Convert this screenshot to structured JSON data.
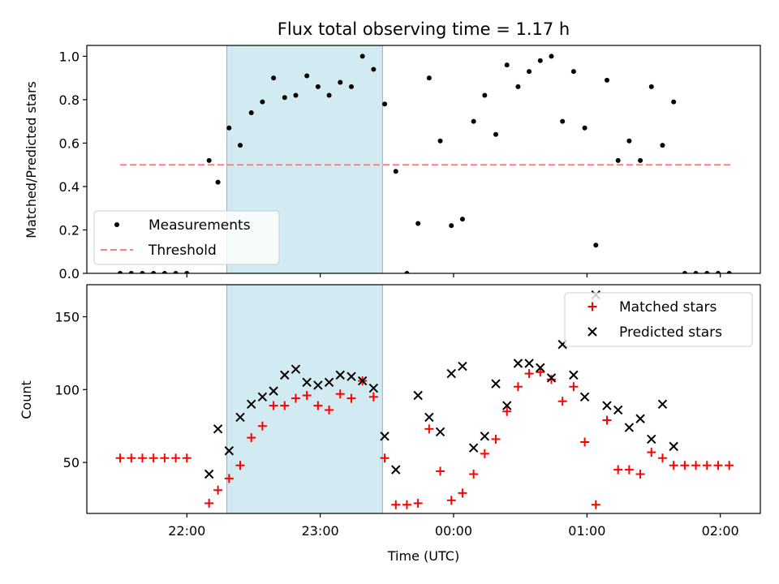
{
  "chart_data": [
    {
      "type": "scatter",
      "title": "Flux total observing time = 1.17 h",
      "xlabel": "",
      "ylabel": "Matched/Predicted stars",
      "ylim": [
        0,
        1.05
      ],
      "yticks": [
        0.0,
        0.2,
        0.4,
        0.6,
        0.8,
        1.0
      ],
      "ytick_labels": [
        "0.0",
        "0.2",
        "0.4",
        "0.6",
        "0.8",
        "1.0"
      ],
      "highlight_span": {
        "from": "22:18",
        "to": "23:28",
        "color": "#add8e6"
      },
      "threshold": {
        "value": 0.5,
        "from": "21:30",
        "to": "02:05",
        "color": "#ff7f7f"
      },
      "legend": {
        "position": "lower-left",
        "entries": [
          {
            "label": "Measurements",
            "marker": "dot",
            "color": "#000000"
          },
          {
            "label": "Threshold",
            "marker": "dashed-line",
            "color": "#ff7f7f"
          }
        ]
      },
      "series": [
        {
          "name": "Measurements",
          "color": "#000000",
          "points": [
            [
              "21:30",
              0.0
            ],
            [
              "21:35",
              0.0
            ],
            [
              "21:40",
              0.0
            ],
            [
              "21:45",
              0.0
            ],
            [
              "21:50",
              0.0
            ],
            [
              "21:55",
              0.0
            ],
            [
              "22:00",
              0.0
            ],
            [
              "22:10",
              0.52
            ],
            [
              "22:14",
              0.42
            ],
            [
              "22:19",
              0.67
            ],
            [
              "22:24",
              0.59
            ],
            [
              "22:29",
              0.74
            ],
            [
              "22:34",
              0.79
            ],
            [
              "22:39",
              0.9
            ],
            [
              "22:44",
              0.81
            ],
            [
              "22:49",
              0.82
            ],
            [
              "22:54",
              0.91
            ],
            [
              "22:59",
              0.86
            ],
            [
              "23:04",
              0.82
            ],
            [
              "23:09",
              0.88
            ],
            [
              "23:14",
              0.86
            ],
            [
              "23:19",
              1.0
            ],
            [
              "23:24",
              0.94
            ],
            [
              "23:29",
              0.78
            ],
            [
              "23:34",
              0.47
            ],
            [
              "23:39",
              0.0
            ],
            [
              "23:44",
              0.23
            ],
            [
              "23:49",
              0.9
            ],
            [
              "23:54",
              0.61
            ],
            [
              "23:59",
              0.22
            ],
            [
              "00:04",
              0.25
            ],
            [
              "00:09",
              0.7
            ],
            [
              "00:14",
              0.82
            ],
            [
              "00:19",
              0.64
            ],
            [
              "00:24",
              0.96
            ],
            [
              "00:29",
              0.86
            ],
            [
              "00:34",
              0.93
            ],
            [
              "00:39",
              0.98
            ],
            [
              "00:44",
              1.0
            ],
            [
              "00:49",
              0.7
            ],
            [
              "00:54",
              0.93
            ],
            [
              "00:59",
              0.67
            ],
            [
              "01:04",
              0.13
            ],
            [
              "01:09",
              0.89
            ],
            [
              "01:14",
              0.52
            ],
            [
              "01:19",
              0.61
            ],
            [
              "01:24",
              0.52
            ],
            [
              "01:29",
              0.86
            ],
            [
              "01:34",
              0.59
            ],
            [
              "01:39",
              0.79
            ],
            [
              "01:44",
              0.0
            ],
            [
              "01:49",
              0.0
            ],
            [
              "01:54",
              0.0
            ],
            [
              "01:59",
              0.0
            ],
            [
              "02:04",
              0.0
            ]
          ]
        }
      ]
    },
    {
      "type": "scatter",
      "title": "",
      "xlabel": "Time (UTC)",
      "ylabel": "Count",
      "xlim": [
        "21:15",
        "02:18"
      ],
      "xticks": [
        "22:00",
        "23:00",
        "00:00",
        "01:00",
        "02:00"
      ],
      "ylim": [
        15,
        172
      ],
      "yticks": [
        50,
        100,
        150
      ],
      "ytick_labels": [
        "50",
        "100",
        "150"
      ],
      "highlight_span": {
        "from": "22:18",
        "to": "23:28",
        "color": "#add8e6"
      },
      "legend": {
        "position": "top-right",
        "entries": [
          {
            "label": "Matched stars",
            "marker": "plus",
            "color": "#ff0000"
          },
          {
            "label": "Predicted stars",
            "marker": "x",
            "color": "#000000"
          }
        ]
      },
      "series": [
        {
          "name": "Matched stars",
          "color": "#ff0000",
          "points": [
            [
              "21:30",
              53
            ],
            [
              "21:35",
              53
            ],
            [
              "21:40",
              53
            ],
            [
              "21:45",
              53
            ],
            [
              "21:50",
              53
            ],
            [
              "21:55",
              53
            ],
            [
              "22:00",
              53
            ],
            [
              "22:10",
              22
            ],
            [
              "22:14",
              31
            ],
            [
              "22:19",
              39
            ],
            [
              "22:24",
              48
            ],
            [
              "22:29",
              67
            ],
            [
              "22:34",
              75
            ],
            [
              "22:39",
              89
            ],
            [
              "22:44",
              89
            ],
            [
              "22:49",
              94
            ],
            [
              "22:54",
              96
            ],
            [
              "22:59",
              89
            ],
            [
              "23:04",
              86
            ],
            [
              "23:09",
              97
            ],
            [
              "23:14",
              94
            ],
            [
              "23:19",
              106
            ],
            [
              "23:24",
              95
            ],
            [
              "23:29",
              53
            ],
            [
              "23:34",
              21
            ],
            [
              "23:39",
              21
            ],
            [
              "23:44",
              22
            ],
            [
              "23:49",
              73
            ],
            [
              "23:54",
              44
            ],
            [
              "23:59",
              24
            ],
            [
              "00:04",
              29
            ],
            [
              "00:09",
              42
            ],
            [
              "00:14",
              56
            ],
            [
              "00:19",
              66
            ],
            [
              "00:24",
              85
            ],
            [
              "00:29",
              102
            ],
            [
              "00:34",
              111
            ],
            [
              "00:39",
              112
            ],
            [
              "00:44",
              107
            ],
            [
              "00:49",
              92
            ],
            [
              "00:54",
              102
            ],
            [
              "00:59",
              64
            ],
            [
              "01:04",
              21
            ],
            [
              "01:09",
              79
            ],
            [
              "01:14",
              45
            ],
            [
              "01:19",
              45
            ],
            [
              "01:24",
              42
            ],
            [
              "01:29",
              57
            ],
            [
              "01:34",
              53
            ],
            [
              "01:39",
              48
            ],
            [
              "01:44",
              48
            ],
            [
              "01:49",
              48
            ],
            [
              "01:54",
              48
            ],
            [
              "01:59",
              48
            ],
            [
              "02:04",
              48
            ]
          ]
        },
        {
          "name": "Predicted stars",
          "color": "#000000",
          "points": [
            [
              "22:10",
              42
            ],
            [
              "22:14",
              73
            ],
            [
              "22:19",
              58
            ],
            [
              "22:24",
              81
            ],
            [
              "22:29",
              90
            ],
            [
              "22:34",
              95
            ],
            [
              "22:39",
              99
            ],
            [
              "22:44",
              110
            ],
            [
              "22:49",
              114
            ],
            [
              "22:54",
              105
            ],
            [
              "22:59",
              103
            ],
            [
              "23:04",
              105
            ],
            [
              "23:09",
              110
            ],
            [
              "23:14",
              109
            ],
            [
              "23:19",
              106
            ],
            [
              "23:24",
              101
            ],
            [
              "23:29",
              68
            ],
            [
              "23:34",
              45
            ],
            [
              "23:44",
              96
            ],
            [
              "23:49",
              81
            ],
            [
              "23:54",
              71
            ],
            [
              "23:59",
              111
            ],
            [
              "00:04",
              116
            ],
            [
              "00:09",
              60
            ],
            [
              "00:14",
              68
            ],
            [
              "00:19",
              104
            ],
            [
              "00:24",
              89
            ],
            [
              "00:29",
              118
            ],
            [
              "00:34",
              118
            ],
            [
              "00:39",
              115
            ],
            [
              "00:44",
              108
            ],
            [
              "00:49",
              131
            ],
            [
              "00:54",
              110
            ],
            [
              "00:59",
              95
            ],
            [
              "01:04",
              165
            ],
            [
              "01:09",
              89
            ],
            [
              "01:14",
              86
            ],
            [
              "01:19",
              74
            ],
            [
              "01:24",
              80
            ],
            [
              "01:29",
              66
            ],
            [
              "01:34",
              90
            ],
            [
              "01:39",
              61
            ]
          ]
        }
      ]
    }
  ]
}
